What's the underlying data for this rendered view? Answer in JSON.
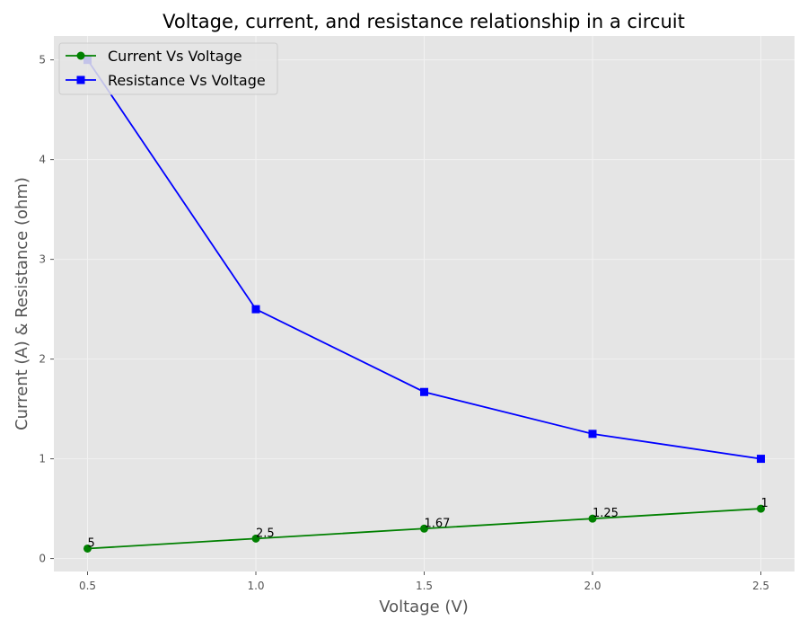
{
  "chart_data": {
    "type": "line",
    "title": "Voltage, current, and resistance relationship in a circuit",
    "xlabel": "Voltage (V)",
    "ylabel": "Current (A) & Resistance (ohm)",
    "xlim": [
      0.4,
      2.6
    ],
    "ylim": [
      -0.13,
      5.24
    ],
    "x": [
      0.5,
      1.0,
      1.5,
      2.0,
      2.5
    ],
    "x_ticks": [
      "0.5",
      "1.0",
      "1.5",
      "2.0",
      "2.5"
    ],
    "y_ticks": [
      "0",
      "1",
      "2",
      "3",
      "4",
      "5"
    ],
    "grid": true,
    "legend_position": "top-left",
    "series": [
      {
        "name": "Current Vs Voltage",
        "values": [
          0.1,
          0.2,
          0.3,
          0.4,
          0.5
        ],
        "color": "#008000",
        "marker": "circle"
      },
      {
        "name": "Resistance Vs Voltage",
        "values": [
          5.0,
          2.5,
          1.67,
          1.25,
          1.0
        ],
        "color": "#0000ff",
        "marker": "square"
      }
    ],
    "annotations": [
      "5",
      "2.5",
      "1.67",
      "1.25",
      "1"
    ],
    "colors": {
      "plot_background": "#e5e5e5",
      "grid": "#f2f2f2"
    }
  }
}
